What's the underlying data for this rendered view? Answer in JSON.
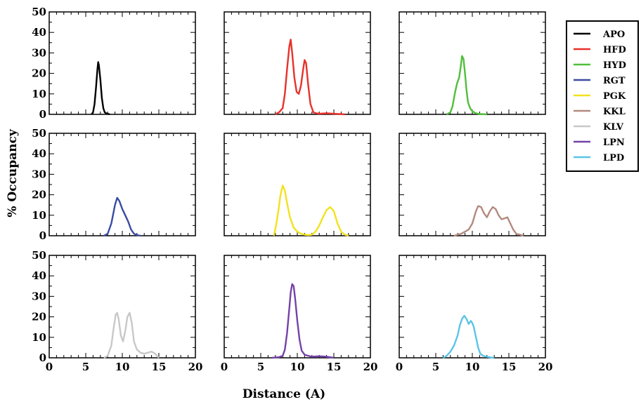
{
  "chart_data": {
    "type": "line",
    "xlabel": "Distance (A)",
    "ylabel": "% Occupancy",
    "xlim": [
      0,
      20
    ],
    "ylim": [
      0,
      50
    ],
    "x_ticks": [
      0,
      5,
      10,
      15,
      20
    ],
    "y_ticks": [
      0,
      10,
      20,
      30,
      40,
      50
    ],
    "legend_position": "right",
    "layout": "3x3 grid",
    "series": [
      {
        "name": "APO",
        "color": "#000000",
        "panel": 0,
        "x": [
          5.8,
          6.0,
          6.2,
          6.4,
          6.6,
          6.7,
          6.8,
          7.0,
          7.2,
          7.4,
          7.6,
          7.8,
          8.0,
          8.3
        ],
        "y": [
          0,
          1,
          5,
          13,
          22,
          25.5,
          24,
          17,
          8,
          3,
          1,
          0.5,
          0.3,
          0
        ]
      },
      {
        "name": "HFD",
        "color": "#e8312a",
        "panel": 1,
        "x": [
          7.0,
          7.5,
          8.0,
          8.3,
          8.6,
          8.9,
          9.1,
          9.3,
          9.6,
          9.9,
          10.2,
          10.5,
          10.8,
          11.0,
          11.2,
          11.5,
          11.8,
          12.2,
          12.6,
          13.0,
          14.0,
          15.0,
          16.5
        ],
        "y": [
          0,
          1,
          3,
          10,
          22,
          33,
          36.5,
          30,
          18,
          11,
          10,
          14,
          22,
          26.5,
          25,
          14,
          5,
          1,
          0.5,
          0.3,
          0.5,
          0.3,
          0
        ]
      },
      {
        "name": "HYD",
        "color": "#4fbf3a",
        "panel": 2,
        "x": [
          6.5,
          7.0,
          7.3,
          7.6,
          7.9,
          8.2,
          8.4,
          8.6,
          8.8,
          9.0,
          9.2,
          9.4,
          9.7,
          10.0,
          10.5,
          11.0,
          12.0
        ],
        "y": [
          0,
          1,
          4,
          10,
          15,
          18,
          23,
          28.5,
          27,
          20,
          12,
          6,
          3,
          1.5,
          0.5,
          0.2,
          0
        ]
      },
      {
        "name": "RGT",
        "color": "#3a4ba3",
        "panel": 3,
        "x": [
          7.5,
          8.0,
          8.5,
          9.0,
          9.3,
          9.6,
          10.0,
          10.4,
          10.8,
          11.2,
          11.6,
          12.0,
          12.5
        ],
        "y": [
          0,
          1,
          6,
          15,
          18.5,
          17,
          13,
          10,
          7,
          3,
          1,
          0.3,
          0
        ]
      },
      {
        "name": "PGK",
        "color": "#f2e21e",
        "panel": 4,
        "x": [
          6.8,
          7.1,
          7.4,
          7.7,
          8.0,
          8.3,
          8.6,
          9.0,
          9.5,
          10.0,
          10.5,
          11.0,
          11.5,
          12.0,
          12.5,
          13.0,
          13.5,
          14.0,
          14.5,
          15.0,
          15.5,
          16.0,
          16.5,
          17.0
        ],
        "y": [
          0,
          5,
          12,
          20,
          24.5,
          22,
          16,
          9,
          4,
          2,
          1,
          0.5,
          0.3,
          0.5,
          2,
          5,
          9,
          12.5,
          14,
          12,
          6,
          2,
          0.5,
          0
        ]
      },
      {
        "name": "KKL",
        "color": "#b38a7f",
        "panel": 5,
        "x": [
          7.5,
          8.0,
          8.5,
          9.0,
          9.5,
          10.0,
          10.5,
          10.8,
          11.2,
          11.6,
          12.0,
          12.4,
          12.8,
          13.2,
          13.6,
          14.0,
          14.4,
          14.8,
          15.2,
          15.6,
          16.0,
          16.5,
          17.0
        ],
        "y": [
          0,
          0.5,
          1,
          2,
          3,
          6,
          12,
          14.5,
          14,
          11,
          9,
          12,
          14,
          13,
          10,
          8,
          8.5,
          9,
          6,
          3,
          1,
          0.5,
          0
        ]
      },
      {
        "name": "KLV",
        "color": "#c8c8c8",
        "panel": 6,
        "x": [
          7.5,
          8.0,
          8.5,
          8.8,
          9.1,
          9.3,
          9.5,
          9.8,
          10.1,
          10.4,
          10.7,
          11.0,
          11.3,
          11.6,
          12.0,
          12.5,
          13.0,
          13.5,
          14.0,
          14.5,
          15.0
        ],
        "y": [
          0,
          1,
          6,
          14,
          21,
          22,
          19,
          11,
          8,
          13,
          20,
          22,
          17,
          8,
          4,
          2.5,
          2,
          2.5,
          3,
          2,
          0
        ]
      },
      {
        "name": "LPN",
        "color": "#7442a8",
        "panel": 7,
        "x": [
          6.5,
          7.5,
          8.0,
          8.3,
          8.6,
          8.9,
          9.1,
          9.3,
          9.5,
          9.7,
          10.0,
          10.3,
          10.6,
          11.0,
          11.5,
          12.0,
          13.0,
          14.0,
          15.0
        ],
        "y": [
          0,
          0.3,
          1,
          4,
          12,
          24,
          32,
          36,
          35,
          29,
          18,
          9,
          3.5,
          1.5,
          1,
          0.5,
          0.8,
          0.5,
          0
        ]
      },
      {
        "name": "LPD",
        "color": "#5bc4e6",
        "panel": 8,
        "x": [
          6.0,
          6.5,
          7.0,
          7.5,
          8.0,
          8.3,
          8.6,
          8.9,
          9.2,
          9.5,
          9.8,
          10.0,
          10.2,
          10.5,
          10.8,
          11.1,
          11.5,
          12.0,
          12.5,
          13.0
        ],
        "y": [
          0,
          1,
          3,
          6,
          11,
          16,
          19,
          20.5,
          19,
          16.5,
          18,
          17,
          15,
          10,
          5,
          2,
          1,
          0.5,
          0.2,
          0
        ]
      }
    ]
  }
}
